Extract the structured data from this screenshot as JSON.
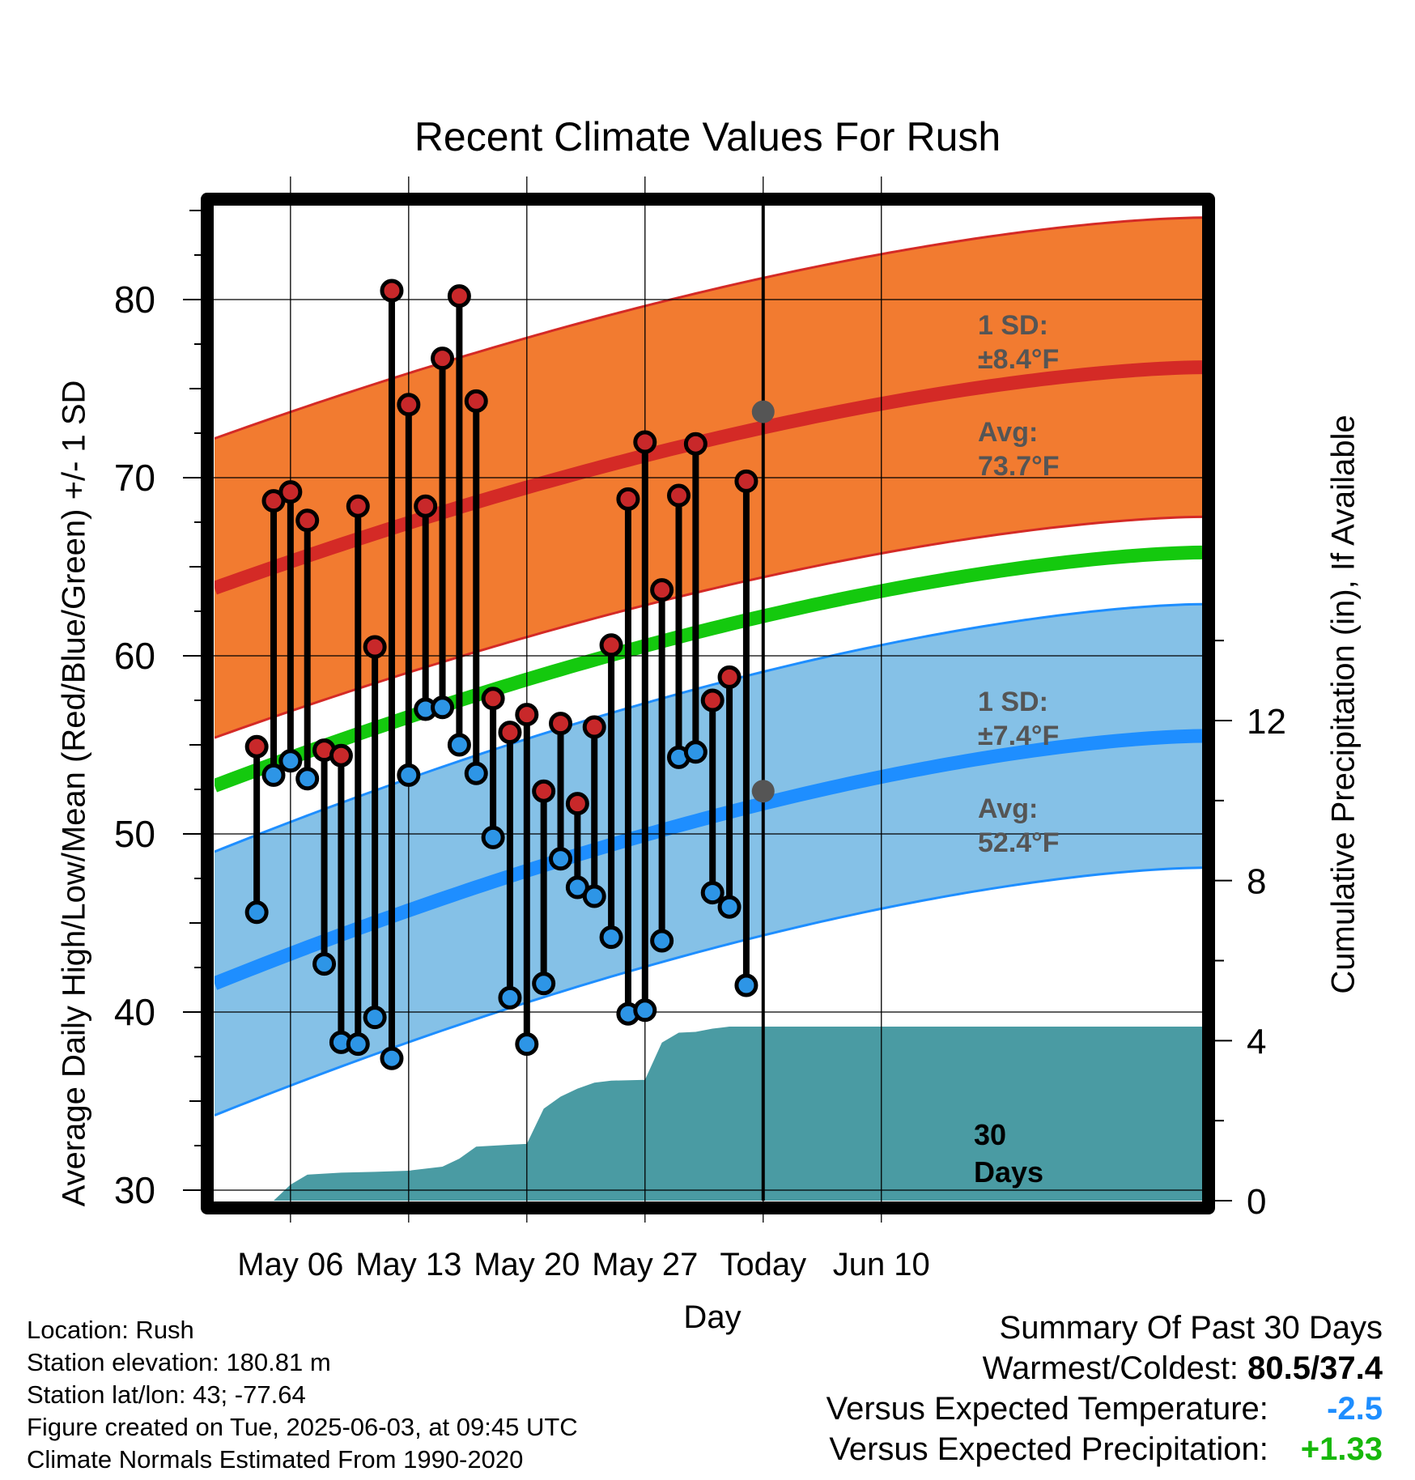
{
  "chart_data": {
    "type": "range-line",
    "title": "Recent Climate Values For Rush",
    "xlabel": "Day",
    "ylabel_left": "Average Daily High/Low/Mean (Red/Blue/Green) +/- 1 SD",
    "ylabel_right": "Cumulative Precipitation (in), If Available",
    "x_range": [
      1.5,
      60
    ],
    "x_ticks": [
      {
        "day": 6,
        "label": "May 06"
      },
      {
        "day": 13,
        "label": "May 13"
      },
      {
        "day": 20,
        "label": "May 20"
      },
      {
        "day": 27,
        "label": "May 27"
      },
      {
        "day": 34,
        "label": "Today"
      },
      {
        "day": 41,
        "label": "Jun 10"
      }
    ],
    "y_left_range": [
      30,
      86
    ],
    "y_left_ticks": [
      30,
      40,
      50,
      60,
      70,
      80
    ],
    "y_right_range": [
      0,
      22.6
    ],
    "y_right_ticks": [
      0,
      4,
      8,
      12
    ],
    "grid": true,
    "days": [
      4,
      5,
      6,
      7,
      8,
      9,
      10,
      11,
      12,
      13,
      14,
      15,
      16,
      17,
      18,
      19,
      20,
      21,
      22,
      23,
      24,
      25,
      26,
      27,
      28,
      29,
      30,
      31,
      32,
      33
    ],
    "highs": [
      54.9,
      68.7,
      69.2,
      67.6,
      54.7,
      54.4,
      68.4,
      60.5,
      80.5,
      74.1,
      68.4,
      76.7,
      80.2,
      74.3,
      57.6,
      55.7,
      56.7,
      52.4,
      56.2,
      51.7,
      56.0,
      60.6,
      68.8,
      72.0,
      63.7,
      69.0,
      71.9,
      57.5,
      58.8,
      69.8
    ],
    "lows": [
      45.6,
      53.3,
      54.1,
      53.1,
      42.7,
      38.3,
      38.2,
      39.7,
      37.4,
      53.3,
      57.0,
      57.1,
      55.0,
      53.4,
      49.8,
      40.8,
      38.2,
      41.6,
      48.6,
      47.0,
      46.5,
      44.2,
      39.9,
      40.1,
      44.0,
      54.3,
      54.6,
      46.7,
      45.9,
      41.5
    ],
    "normal_high": {
      "start": 63.8,
      "today": 73.7,
      "end": 76.2,
      "sd": 8.4
    },
    "normal_low": {
      "start": 41.6,
      "today": 52.4,
      "end": 55.5,
      "sd": 7.4
    },
    "normal_mean": {
      "start": 52.7,
      "end": 65.8
    },
    "precip_cumulative": [
      [
        1.5,
        0
      ],
      [
        5,
        0
      ],
      [
        6,
        0.4
      ],
      [
        7,
        0.65
      ],
      [
        9,
        0.7
      ],
      [
        11,
        0.72
      ],
      [
        13,
        0.75
      ],
      [
        15,
        0.85
      ],
      [
        16,
        1.05
      ],
      [
        17,
        1.35
      ],
      [
        19,
        1.4
      ],
      [
        20,
        1.42
      ],
      [
        21,
        2.3
      ],
      [
        22,
        2.6
      ],
      [
        23,
        2.8
      ],
      [
        24,
        2.95
      ],
      [
        25,
        3.0
      ],
      [
        27,
        3.02
      ],
      [
        28,
        3.95
      ],
      [
        29,
        4.2
      ],
      [
        30,
        4.22
      ],
      [
        31,
        4.3
      ],
      [
        32,
        4.35
      ],
      [
        34,
        4.35
      ],
      [
        60,
        4.35
      ]
    ],
    "colors": {
      "high_band": "#f27b30",
      "high_line": "#d42a26",
      "low_band": "#85c1e7",
      "low_line": "#1e8eff",
      "mean_line": "#14c90e",
      "precip": "#4a9ba3",
      "high_dot": "#c8282a",
      "low_dot": "#2d95e6"
    }
  },
  "annotations": {
    "high_sd_label": "1 SD:",
    "high_sd_value": "±8.4°F",
    "high_avg_label": "Avg:",
    "high_avg_value": "73.7°F",
    "low_sd_label": "1 SD:",
    "low_sd_value": "±7.4°F",
    "low_avg_label": "Avg:",
    "low_avg_value": "52.4°F",
    "window_label_1": "30",
    "window_label_2": "Days"
  },
  "info": {
    "location": "Location: Rush",
    "elevation": "Station elevation: 180.81 m",
    "latlon": "Station lat/lon: 43; -77.64",
    "created": "Figure created on Tue, 2025-06-03, at 09:45 UTC",
    "normals": "Climate Normals Estimated From 1990-2020"
  },
  "summary": {
    "heading": "Summary Of Past 30 Days",
    "warm_cold_label": "Warmest/Coldest:",
    "warm_cold_value": "80.5/37.4",
    "temp_label": "Versus Expected Temperature:",
    "temp_value": "-2.5",
    "temp_color": "#1e8eff",
    "precip_label": "Versus Expected Precipitation:",
    "precip_value": "+1.33",
    "precip_color": "#17b80b"
  }
}
